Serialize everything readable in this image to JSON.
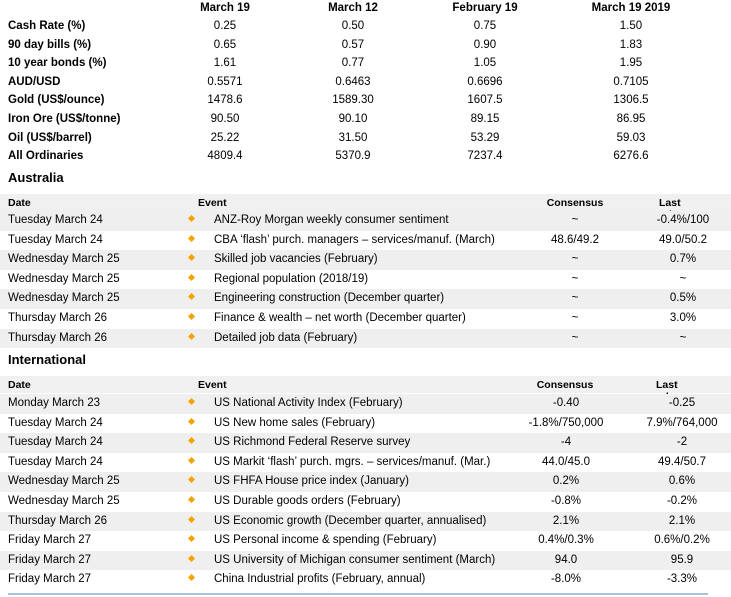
{
  "markets": {
    "columns": [
      "March 19",
      "March 12",
      "February 19",
      "March 19 2019"
    ],
    "rows": [
      {
        "label": "Cash Rate (%)",
        "values": [
          "0.25",
          "0.50",
          "0.75",
          "1.50"
        ]
      },
      {
        "label": "90 day bills (%)",
        "values": [
          "0.65",
          "0.57",
          "0.90",
          "1.83"
        ]
      },
      {
        "label": "10 year bonds (%)",
        "values": [
          "1.61",
          "0.77",
          "1.05",
          "1.95"
        ]
      },
      {
        "label": "AUD/USD",
        "values": [
          "0.5571",
          "0.6463",
          "0.6696",
          "0.7105"
        ]
      },
      {
        "label": "Gold (US$/ounce)",
        "values": [
          "1478.6",
          "1589.30",
          "1607.5",
          "1306.5"
        ]
      },
      {
        "label": "Iron Ore (US$/tonne)",
        "values": [
          "90.50",
          "90.10",
          "89.15",
          "86.95"
        ]
      },
      {
        "label": "Oil (US$/barrel)",
        "values": [
          "25.22",
          "31.50",
          "53.29",
          "59.03"
        ]
      },
      {
        "label": "All Ordinaries",
        "values": [
          "4809.4",
          "5370.9",
          "7237.4",
          "6276.6"
        ]
      }
    ]
  },
  "australia": {
    "title": "Australia",
    "headers": {
      "date": "Date",
      "event": "Event",
      "consensus": "Consensus",
      "last": "Last release"
    },
    "rows": [
      {
        "date": "Tuesday March 24",
        "event": "ANZ-Roy Morgan weekly consumer sentiment",
        "consensus": "~",
        "last": "-0.4%/100"
      },
      {
        "date": "Tuesday March 24",
        "event": "CBA ‘flash’ purch. managers – services/manuf. (March)",
        "consensus": "48.6/49.2",
        "last": "49.0/50.2"
      },
      {
        "date": "Wednesday March 25",
        "event": "Skilled job vacancies (February)",
        "consensus": "~",
        "last": "0.7%"
      },
      {
        "date": "Wednesday March 25",
        "event": "Regional population (2018/19)",
        "consensus": "~",
        "last": "~"
      },
      {
        "date": "Wednesday March 25",
        "event": "Engineering construction (December quarter)",
        "consensus": "~",
        "last": "0.5%"
      },
      {
        "date": "Thursday March 26",
        "event": "Finance & wealth – net worth (December quarter)",
        "consensus": "~",
        "last": "3.0%"
      },
      {
        "date": "Thursday March 26",
        "event": "Detailed job data (February)",
        "consensus": "~",
        "last": "~"
      }
    ]
  },
  "international": {
    "title": "International",
    "headers": {
      "date": "Date",
      "event": "Event",
      "consensus": "Consensus",
      "last": "Last release"
    },
    "rows": [
      {
        "date": "Monday March 23",
        "event": "US National Activity Index (February)",
        "consensus": "-0.40",
        "last": "-0.25"
      },
      {
        "date": "Tuesday March 24",
        "event": "US New home sales (February)",
        "consensus": "-1.8%/750,000",
        "last": "7.9%/764,000"
      },
      {
        "date": "Tuesday March 24",
        "event": "US Richmond Federal Reserve survey",
        "consensus": "-4",
        "last": "-2"
      },
      {
        "date": "Tuesday March 24",
        "event": "US Markit ‘flash’ purch. mgrs. – services/manuf. (Mar.)",
        "consensus": "44.0/45.0",
        "last": "49.4/50.7"
      },
      {
        "date": "Wednesday March 25",
        "event": "US FHFA House price index (January)",
        "consensus": "0.2%",
        "last": "0.6%"
      },
      {
        "date": "Wednesday March 25",
        "event": "US Durable goods orders (February)",
        "consensus": "-0.8%",
        "last": "-0.2%"
      },
      {
        "date": "Thursday March 26",
        "event": "US Economic growth (December quarter, annualised)",
        "consensus": "2.1%",
        "last": "2.1%"
      },
      {
        "date": "Friday March 27",
        "event": "US Personal income & spending (February)",
        "consensus": "0.4%/0.3%",
        "last": "0.6%/0.2%"
      },
      {
        "date": "Friday March 27",
        "event": "US University of Michigan consumer sentiment (March)",
        "consensus": "94.0",
        "last": "95.9"
      },
      {
        "date": "Friday March 27",
        "event": "China Industrial profits (February, annual)",
        "consensus": "-8.0%",
        "last": "-3.3%"
      }
    ]
  }
}
